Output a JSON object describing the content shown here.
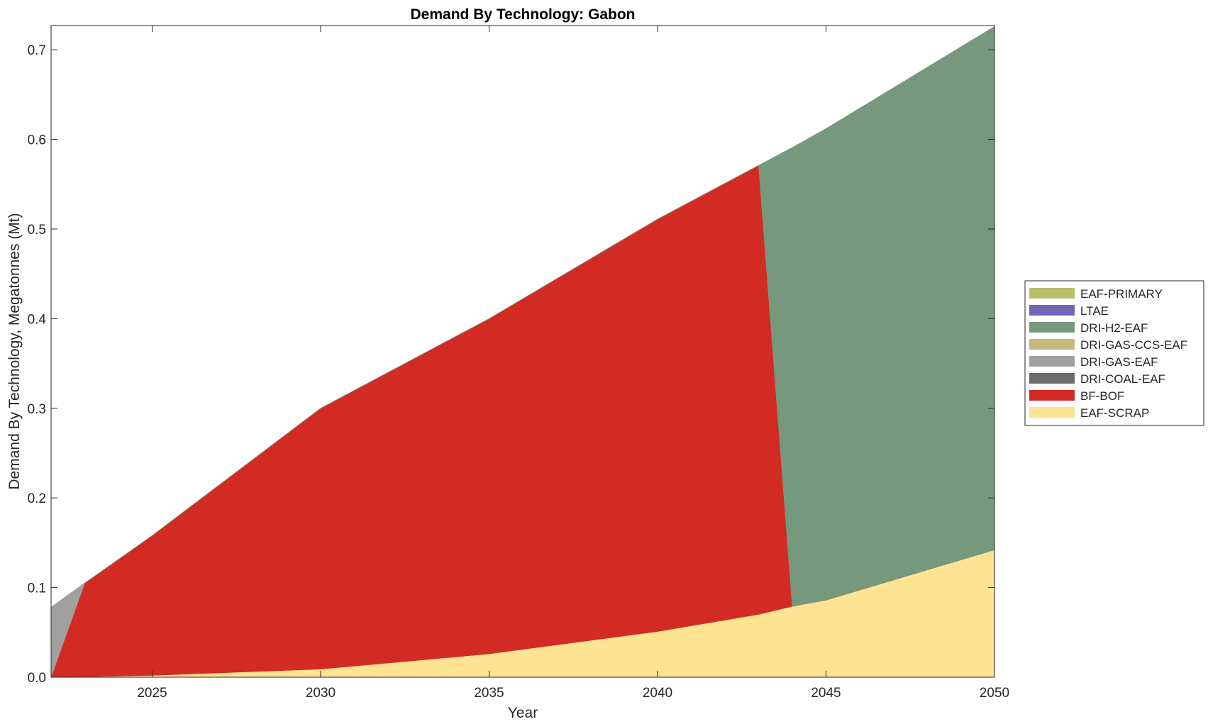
{
  "chart_data": {
    "type": "area",
    "stacked": true,
    "title": "Demand By Technology: Gabon",
    "xlabel": "Year",
    "ylabel": "Demand By Technology, Megatonnes (Mt)",
    "xlim": [
      2022,
      2050
    ],
    "ylim": [
      0,
      0.727
    ],
    "xticks": [
      2025,
      2030,
      2035,
      2040,
      2045,
      2050
    ],
    "yticks": [
      0.0,
      0.1,
      0.2,
      0.3,
      0.4,
      0.5,
      0.6,
      0.7
    ],
    "ytick_labels": [
      "0.0",
      "0.1",
      "0.2",
      "0.3",
      "0.4",
      "0.5",
      "0.6",
      "0.7"
    ],
    "grid": false,
    "legend_position": "right",
    "x": [
      2022,
      2023,
      2025,
      2030,
      2035,
      2040,
      2043,
      2044,
      2045,
      2050
    ],
    "series": [
      {
        "name": "EAF-SCRAP",
        "color": "#FDE392",
        "values": [
          0.0,
          0.0005,
          0.002,
          0.009,
          0.026,
          0.051,
          0.07,
          0.079,
          0.086,
          0.142
        ]
      },
      {
        "name": "BF-BOF",
        "color": "#D22B24",
        "values": [
          0.0,
          0.1045,
          0.156,
          0.291,
          0.374,
          0.46,
          0.501,
          0.0,
          0.0,
          0.0
        ]
      },
      {
        "name": "DRI-COAL-EAF",
        "color": "#6B6B6B",
        "values": [
          0,
          0,
          0,
          0,
          0,
          0,
          0,
          0,
          0,
          0
        ]
      },
      {
        "name": "DRI-GAS-EAF",
        "color": "#A0A0A0",
        "values": [
          0.078,
          0.0,
          0.0,
          0.0,
          0.0,
          0.0,
          0.0,
          0.0,
          0.0,
          0.0
        ]
      },
      {
        "name": "DRI-GAS-CCS-EAF",
        "color": "#C6B97C",
        "values": [
          0,
          0,
          0,
          0,
          0,
          0,
          0,
          0,
          0,
          0
        ]
      },
      {
        "name": "DRI-H2-EAF",
        "color": "#76987D",
        "values": [
          0.0,
          0.0,
          0.0,
          0.0,
          0.0,
          0.0,
          0.0,
          0.512,
          0.526,
          0.584
        ]
      },
      {
        "name": "LTAE",
        "color": "#7467B6",
        "values": [
          0,
          0,
          0,
          0,
          0,
          0,
          0,
          0,
          0,
          0
        ]
      },
      {
        "name": "EAF-PRIMARY",
        "color": "#B7BF6C",
        "values": [
          0,
          0,
          0,
          0,
          0,
          0,
          0,
          0,
          0,
          0
        ]
      }
    ],
    "legend_order": [
      "EAF-PRIMARY",
      "LTAE",
      "DRI-H2-EAF",
      "DRI-GAS-CCS-EAF",
      "DRI-GAS-EAF",
      "DRI-COAL-EAF",
      "BF-BOF",
      "EAF-SCRAP"
    ]
  }
}
